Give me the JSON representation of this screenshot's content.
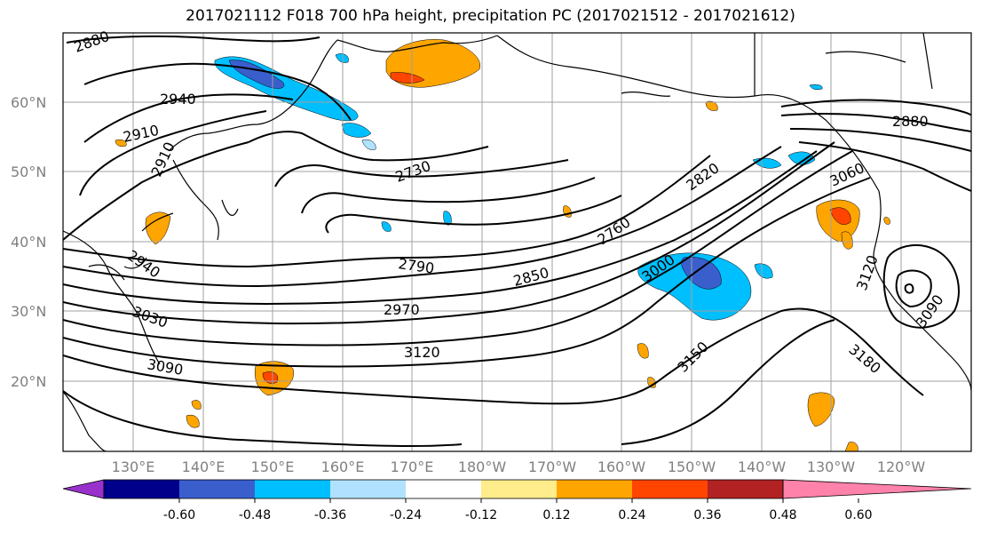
{
  "title": "2017021112 F018 700 hPa height, precipitation PC (2017021512 - 2017021612)",
  "lat_labels": [
    "60°N",
    "50°N",
    "40°N",
    "30°N",
    "20°N"
  ],
  "lon_labels": [
    "130°E",
    "140°E",
    "150°E",
    "160°E",
    "170°E",
    "180°W",
    "170°W",
    "160°W",
    "150°W",
    "140°W",
    "130°W",
    "120°W"
  ],
  "contour_labels": [
    "2880",
    "2940",
    "2910",
    "2910",
    "2730",
    "2820",
    "2760",
    "2880",
    "3060",
    "2940",
    "2790",
    "2850",
    "3000",
    "3030",
    "2970",
    "3120",
    "3090",
    "3150",
    "3180",
    "3120",
    "3090"
  ],
  "colorbar": {
    "colors": [
      "#9932cc",
      "#00008b",
      "#3a5fcd",
      "#00bfff",
      "#b0e2ff",
      "#ffffff",
      "#ffec8b",
      "#ffa500",
      "#ff4500",
      "#b22222",
      "#ff82ab"
    ],
    "tick_labels": [
      "-0.60",
      "-0.48",
      "-0.36",
      "-0.24",
      "-0.12",
      "0.12",
      "0.24",
      "0.36",
      "0.48",
      "0.60"
    ]
  }
}
